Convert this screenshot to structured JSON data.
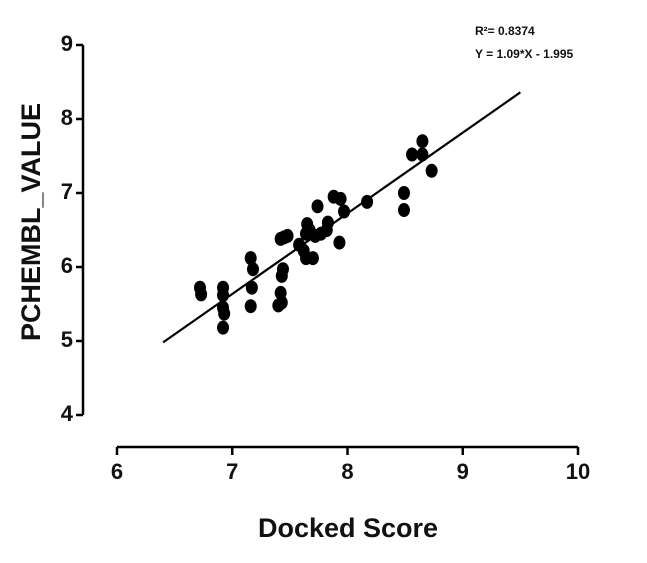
{
  "chart_data": {
    "type": "scatter",
    "xlabel": "Docked Score",
    "ylabel": "PCHEMBL_VALUE",
    "annotations": [
      "R²= 0.8374",
      "Y = 1.09*X - 1.995"
    ],
    "xlim": [
      6,
      10
    ],
    "xticks": [
      6,
      7,
      8,
      9,
      10
    ],
    "ylim": [
      4,
      9
    ],
    "yticks": [
      4,
      5,
      6,
      7,
      8,
      9
    ],
    "color": "#000000",
    "x": [
      6.72,
      6.73,
      6.92,
      6.92,
      6.92,
      6.93,
      6.92,
      7.16,
      7.18,
      7.17,
      7.16,
      7.4,
      7.43,
      7.42,
      7.43,
      7.44,
      7.42,
      7.45,
      7.48,
      7.58,
      7.62,
      7.64,
      7.64,
      7.65,
      7.67,
      7.7,
      7.72,
      7.74,
      7.77,
      7.82,
      7.83,
      7.88,
      7.93,
      7.94,
      7.97,
      8.17,
      8.49,
      8.49,
      8.56,
      8.65,
      8.65,
      8.73
    ],
    "values": [
      5.72,
      5.63,
      5.72,
      5.62,
      5.45,
      5.37,
      5.18,
      6.12,
      5.97,
      5.72,
      5.47,
      5.48,
      5.52,
      5.65,
      5.88,
      5.97,
      6.38,
      6.4,
      6.42,
      6.3,
      6.22,
      6.12,
      6.45,
      6.58,
      6.5,
      6.12,
      6.42,
      6.82,
      6.45,
      6.5,
      6.6,
      6.95,
      6.33,
      6.92,
      6.75,
      6.88,
      7.0,
      6.77,
      7.52,
      7.7,
      7.52,
      7.3
    ],
    "fit_line": {
      "x": [
        6.4,
        9.5
      ],
      "values": [
        4.981,
        8.3605
      ]
    }
  }
}
